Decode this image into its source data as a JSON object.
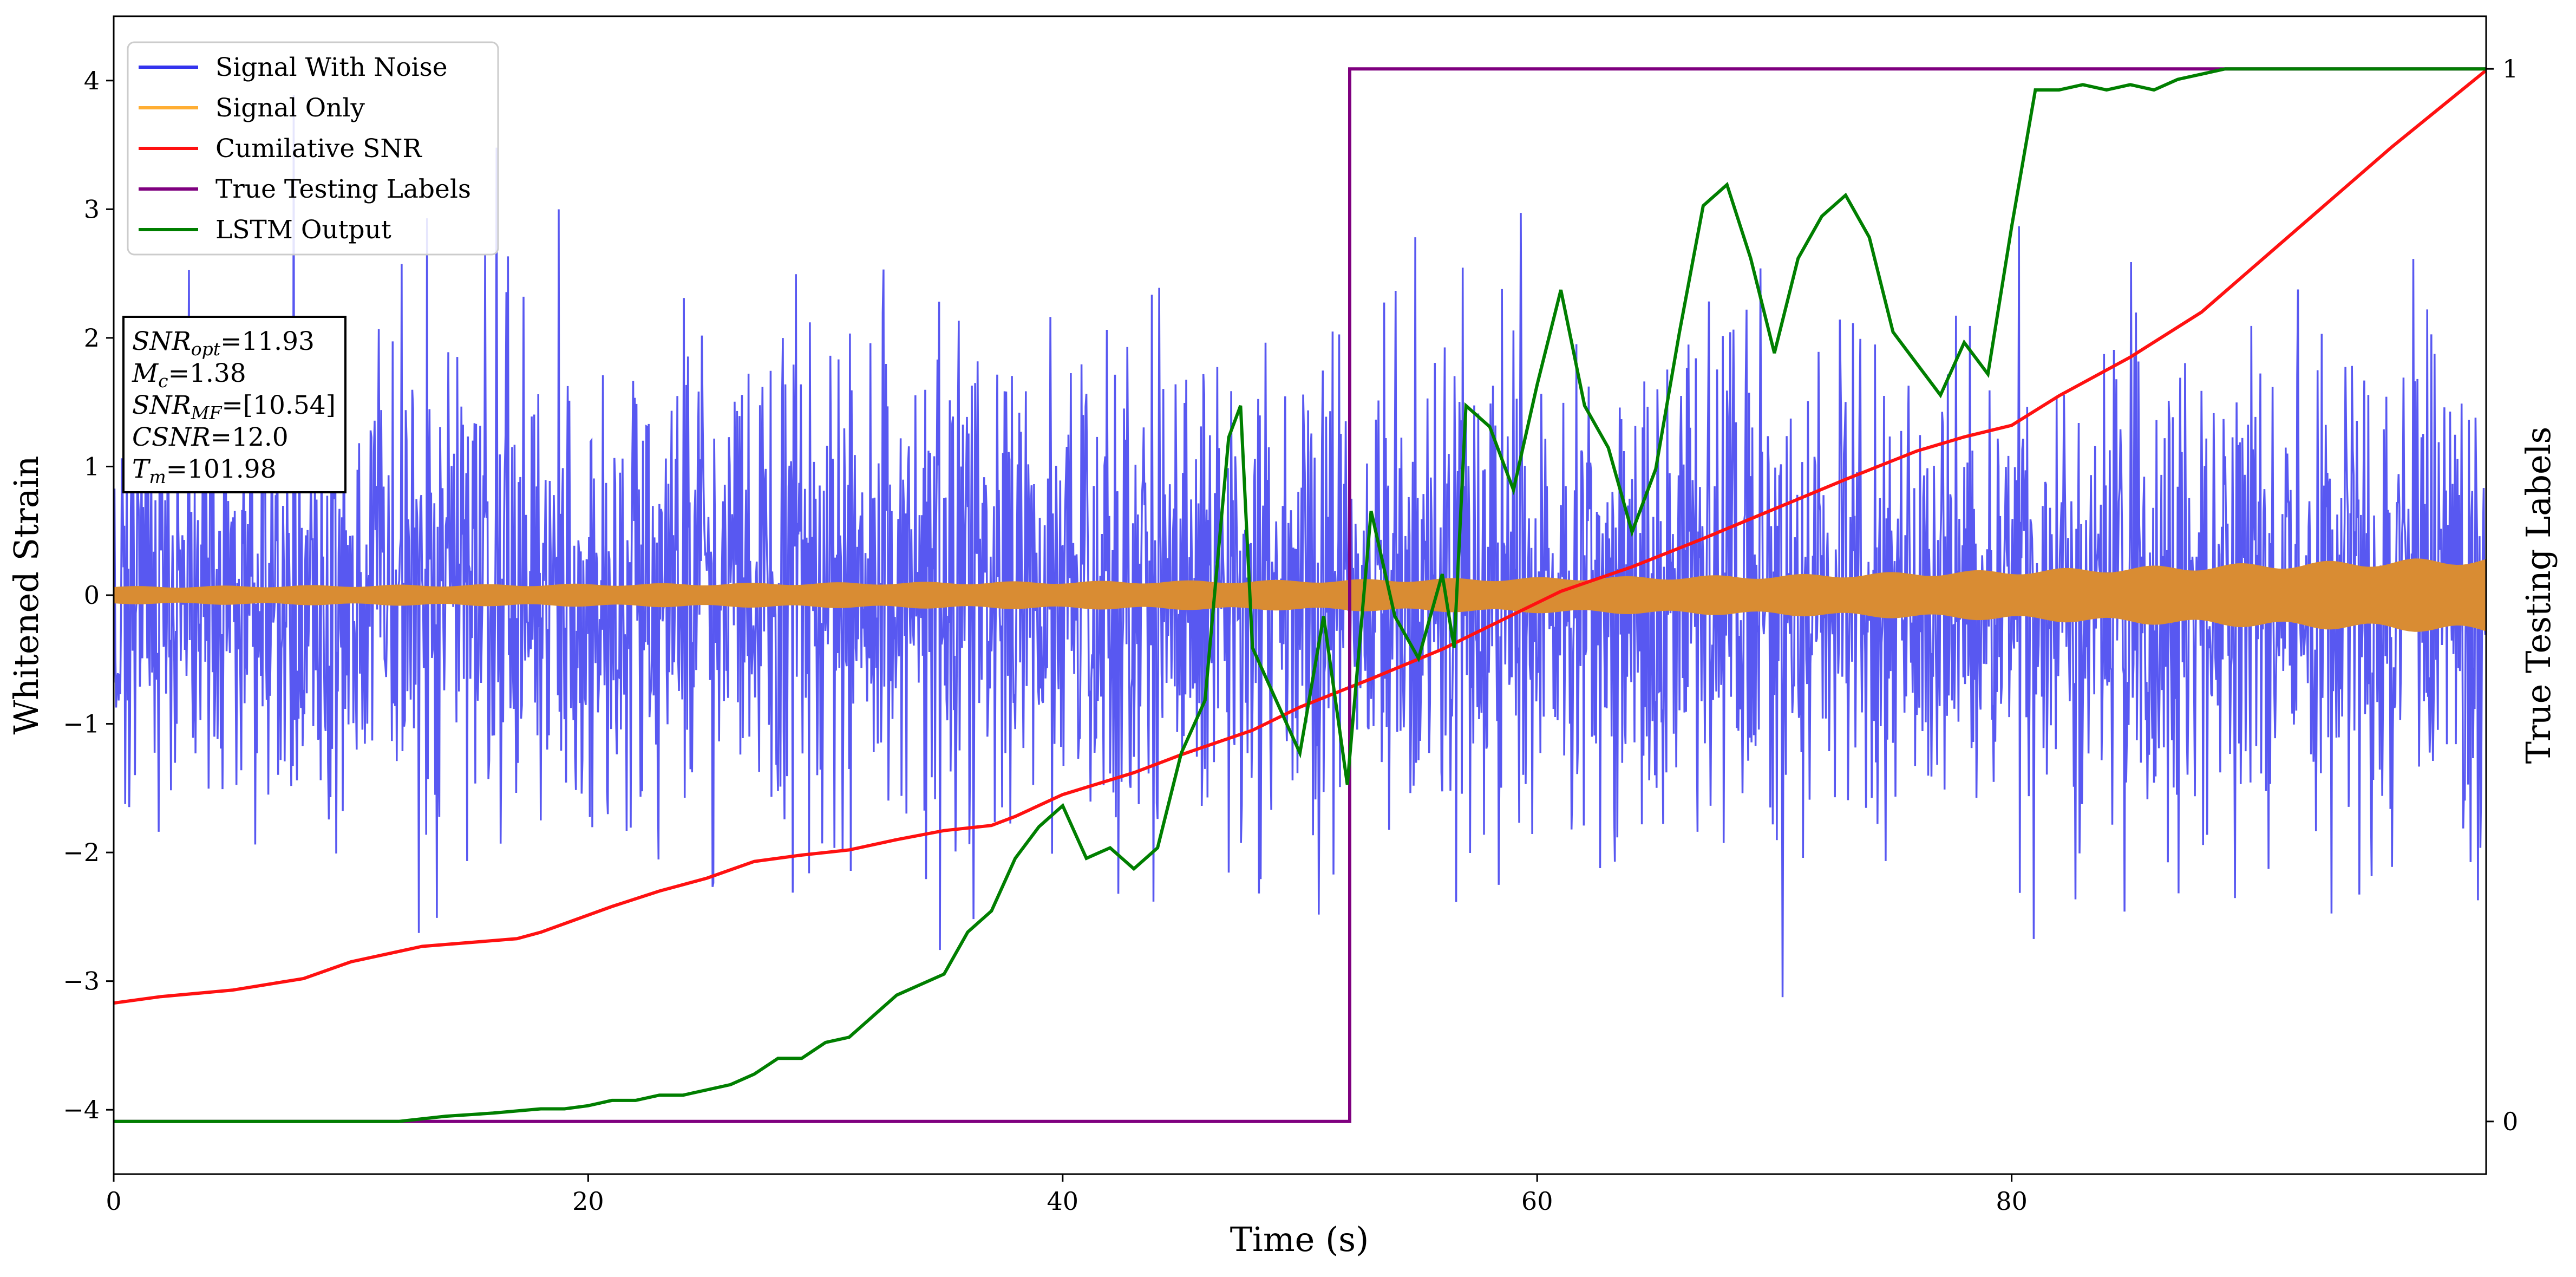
{
  "chart_data": {
    "type": "line",
    "xlabel": "Time (s)",
    "ylabel": "Whitened Strain",
    "y2label": "True Testing Labels",
    "xlim": [
      0,
      100
    ],
    "ylim": [
      -4.5,
      4.5
    ],
    "y2lim": [
      -0.05,
      1.05
    ],
    "grid": false,
    "legend_position": "top-left",
    "x_ticks": [
      0,
      20,
      40,
      60,
      80
    ],
    "y_ticks": [
      -4,
      -3,
      -2,
      -1,
      0,
      1,
      2,
      3,
      4
    ],
    "y2_ticks": [
      0,
      1
    ],
    "x_tick_labels": [
      "0",
      "20",
      "40",
      "60",
      "80"
    ],
    "y_tick_labels": [
      "−4",
      "−3",
      "−2",
      "−1",
      "0",
      "1",
      "2",
      "3",
      "4"
    ],
    "y2_tick_labels": [
      "0",
      "1"
    ],
    "annotation": [
      {
        "base": "SNR",
        "sub": "opt",
        "value": "=11.93"
      },
      {
        "base": "M",
        "sub": "c",
        "value": "=1.38"
      },
      {
        "base": "SNR",
        "sub": "MF",
        "value": "=[10.54]"
      },
      {
        "base": "CSNR",
        "sub": "",
        "value": "=12.0"
      },
      {
        "base": "T",
        "sub": "m",
        "value": "=101.98"
      }
    ],
    "series": [
      {
        "name": "Signal With Noise",
        "color": "#3333ee",
        "axis": "left",
        "kind": "noise",
        "envelope_y": [
          -4.0,
          4.1
        ]
      },
      {
        "name": "Signal Only",
        "color": "#ffae33",
        "fill_color": "#d98c33",
        "axis": "left",
        "kind": "envelope",
        "x": [
          0,
          10,
          20,
          30,
          40,
          50,
          60,
          70,
          80,
          90,
          100
        ],
        "amplitude": [
          0.07,
          0.08,
          0.09,
          0.1,
          0.11,
          0.12,
          0.14,
          0.16,
          0.2,
          0.25,
          0.3
        ]
      },
      {
        "name": "Cumilative SNR",
        "color": "#ff1111",
        "axis": "left",
        "kind": "line",
        "x": [
          0,
          2,
          5,
          8,
          10,
          13,
          17,
          18,
          21,
          23,
          25,
          27,
          29,
          31,
          33,
          35,
          37,
          38,
          40,
          43,
          45,
          48,
          50,
          53,
          56,
          59,
          61,
          64,
          67,
          70,
          73,
          76,
          78,
          80,
          82,
          85,
          88,
          90,
          93,
          96,
          100
        ],
        "y": [
          -3.17,
          -3.12,
          -3.07,
          -2.98,
          -2.85,
          -2.73,
          -2.67,
          -2.62,
          -2.42,
          -2.3,
          -2.2,
          -2.07,
          -2.02,
          -1.98,
          -1.9,
          -1.83,
          -1.79,
          -1.72,
          -1.55,
          -1.38,
          -1.24,
          -1.05,
          -0.87,
          -0.65,
          -0.42,
          -0.15,
          0.03,
          0.22,
          0.44,
          0.67,
          0.9,
          1.12,
          1.23,
          1.32,
          1.55,
          1.85,
          2.2,
          2.52,
          3.0,
          3.48,
          4.08
        ]
      },
      {
        "name": "True Testing Labels",
        "color": "#7f007f",
        "axis": "right",
        "kind": "step",
        "x": [
          0,
          52.1,
          52.1,
          100
        ],
        "y": [
          0,
          0,
          1,
          1
        ]
      },
      {
        "name": "LSTM Output",
        "color": "#007f00",
        "axis": "right",
        "kind": "line",
        "x": [
          0,
          12,
          14,
          16,
          17,
          18,
          19,
          20,
          21,
          22,
          23,
          24,
          25,
          26,
          27,
          28,
          29,
          30,
          31,
          32,
          33,
          34,
          35,
          36,
          37,
          38,
          39,
          40,
          41,
          42,
          43,
          44,
          45,
          46,
          47,
          47.5,
          48,
          49,
          50,
          51,
          52,
          53,
          54,
          55,
          56,
          56.5,
          57,
          58,
          59,
          60,
          61,
          62,
          63,
          64,
          65,
          66,
          67,
          68,
          69,
          70,
          71,
          72,
          73,
          74,
          75,
          76,
          77,
          78,
          79,
          80,
          81,
          82,
          83,
          84,
          85,
          86,
          87,
          88,
          89,
          90,
          100
        ],
        "y": [
          0,
          0,
          0.005,
          0.008,
          0.01,
          0.012,
          0.012,
          0.015,
          0.02,
          0.02,
          0.025,
          0.025,
          0.03,
          0.035,
          0.045,
          0.06,
          0.06,
          0.075,
          0.08,
          0.1,
          0.12,
          0.13,
          0.14,
          0.18,
          0.2,
          0.25,
          0.28,
          0.3,
          0.25,
          0.26,
          0.24,
          0.26,
          0.35,
          0.4,
          0.65,
          0.68,
          0.45,
          0.4,
          0.35,
          0.48,
          0.32,
          0.58,
          0.48,
          0.44,
          0.52,
          0.45,
          0.68,
          0.66,
          0.6,
          0.7,
          0.79,
          0.68,
          0.64,
          0.56,
          0.62,
          0.75,
          0.87,
          0.89,
          0.82,
          0.73,
          0.82,
          0.86,
          0.88,
          0.84,
          0.75,
          0.72,
          0.69,
          0.74,
          0.71,
          0.85,
          0.98,
          0.98,
          0.985,
          0.98,
          0.985,
          0.98,
          0.99,
          0.995,
          1.0,
          1.0,
          1.0
        ]
      }
    ]
  }
}
